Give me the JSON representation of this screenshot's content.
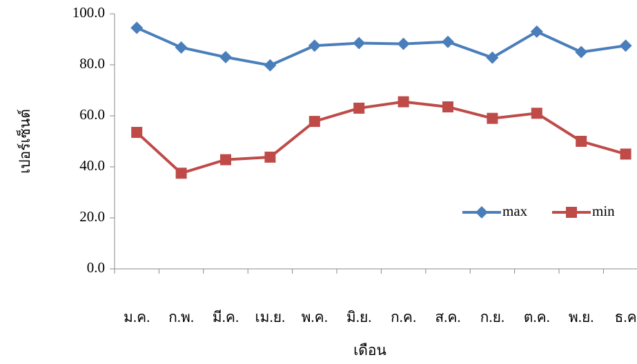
{
  "chart_data": {
    "type": "line",
    "x_label": "เดือน",
    "y_label": "เปอร์เซ็นต์",
    "categories": [
      "ม.ค.",
      "ก.พ.",
      "มี.ค.",
      "เม.ย.",
      "พ.ค.",
      "มิ.ย.",
      "ก.ค.",
      "ส.ค.",
      "ก.ย.",
      "ต.ค.",
      "พ.ย.",
      "ธ.ค"
    ],
    "series": [
      {
        "name": "max",
        "color": "#4a7ebb",
        "marker": "diamond",
        "values": [
          94.5,
          86.8,
          83,
          79.8,
          87.5,
          88.5,
          88.2,
          89,
          82.8,
          93,
          85,
          87.5
        ]
      },
      {
        "name": "min",
        "color": "#be4b48",
        "marker": "square",
        "values": [
          53.5,
          37.5,
          42.8,
          43.8,
          57.8,
          63,
          65.5,
          63.5,
          59,
          61,
          50,
          45
        ]
      }
    ],
    "ylim": [
      0,
      100
    ],
    "yticks": [
      {
        "value": 0,
        "label": "0.0"
      },
      {
        "value": 20,
        "label": "20.0"
      },
      {
        "value": 40,
        "label": "40.0"
      },
      {
        "value": 60,
        "label": "60.0"
      },
      {
        "value": 80,
        "label": "80.0"
      },
      {
        "value": 100,
        "label": "100.0"
      }
    ],
    "grid": false,
    "legend": "right"
  }
}
